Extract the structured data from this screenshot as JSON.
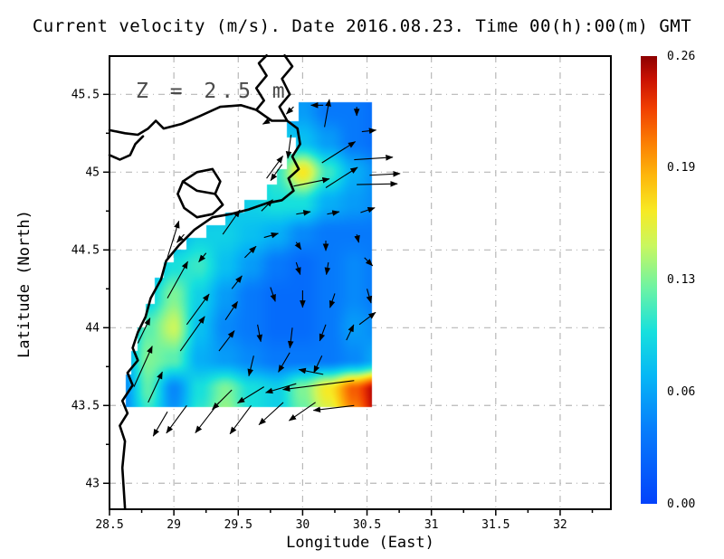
{
  "figure": {
    "title": "Current velocity (m/s). Date 2016.08.23. Time 00(h):00(m) GMT",
    "annotation": "Z = 2.5 m",
    "units": "m/s"
  },
  "axes": {
    "x": {
      "label": "Longitude (East)",
      "tick_values": [
        28.5,
        29,
        29.5,
        30,
        30.5,
        31,
        31.5,
        32
      ],
      "tick_labels": [
        "28.5",
        "29",
        "29.5",
        "30",
        "30.5",
        "31",
        "31.5",
        "32"
      ],
      "minor_tick_values": [
        28.75,
        29.25,
        29.75,
        30.25,
        30.75,
        31.25,
        31.75,
        32.25
      ],
      "range": [
        28.5,
        32.394
      ]
    },
    "y": {
      "label": "Latitude (North)",
      "tick_values": [
        45.5,
        45,
        44.5,
        44,
        43.5,
        43
      ],
      "tick_labels": [
        "45.5",
        "45",
        "44.5",
        "44",
        "43.5",
        "43"
      ],
      "minor_tick_values": [
        45.25,
        44.75,
        44.25,
        43.75,
        43.25
      ],
      "range": [
        42.833,
        45.746
      ]
    }
  },
  "colorbar": {
    "min": 0,
    "max": 0.26,
    "tick_values": [
      0.26,
      0.195,
      0.13,
      0.065,
      0
    ],
    "tick_labels": [
      "0.26",
      "0.19",
      "0.13",
      "0.06",
      "0.00"
    ]
  },
  "colors": {
    "background": "#ffffff",
    "frame": "#000000",
    "grid": "#b8b8b8",
    "coast": "#000000",
    "arrow": "#000000",
    "annotation": "#4a4a4a",
    "colormap": [
      [
        0.0,
        "#0442fb"
      ],
      [
        0.045,
        "#0680fb"
      ],
      [
        0.075,
        "#06b8f5"
      ],
      [
        0.1,
        "#17e0dd"
      ],
      [
        0.125,
        "#6cf3a4"
      ],
      [
        0.15,
        "#c9f75f"
      ],
      [
        0.17,
        "#f7ea24"
      ],
      [
        0.19,
        "#fdb80c"
      ],
      [
        0.21,
        "#fb7d03"
      ],
      [
        0.23,
        "#f03d01"
      ],
      [
        0.247,
        "#c81002"
      ],
      [
        0.26,
        "#8d0000"
      ]
    ]
  },
  "chart_data": {
    "type": "heatmap",
    "subtype": "heatmap+quiver",
    "title": "Current velocity (m/s). Date 2016.08.23. Time 00(h):00(m) GMT",
    "xlabel": "Longitude (East)",
    "ylabel": "Latitude (North)",
    "units": "m/s",
    "depth_m": 2.5,
    "value_range": [
      0,
      0.26
    ],
    "heatmap": {
      "lons": [
        28.6,
        28.8,
        29.0,
        29.2,
        29.4,
        29.6,
        29.8,
        30.0,
        30.2,
        30.4,
        30.6
      ],
      "lats": [
        45.6,
        45.4,
        45.2,
        45.0,
        44.8,
        44.6,
        44.4,
        44.2,
        44.0,
        43.8,
        43.6,
        43.4
      ],
      "values": [
        [
          0.03,
          0.03,
          0.03,
          0.04,
          0.04,
          0.05,
          0.05,
          0.05,
          0.04,
          0.03,
          0.03
        ],
        [
          0.03,
          0.03,
          0.03,
          0.04,
          0.05,
          0.06,
          0.07,
          0.06,
          0.04,
          0.04,
          0.03
        ],
        [
          0.03,
          0.03,
          0.04,
          0.04,
          0.05,
          0.07,
          0.09,
          0.08,
          0.06,
          0.04,
          0.03
        ],
        [
          0.03,
          0.04,
          0.04,
          0.05,
          0.06,
          0.08,
          0.11,
          0.17,
          0.11,
          0.07,
          0.05
        ],
        [
          0.04,
          0.04,
          0.05,
          0.06,
          0.08,
          0.09,
          0.1,
          0.1,
          0.07,
          0.06,
          0.05
        ],
        [
          0.04,
          0.05,
          0.07,
          0.09,
          0.09,
          0.08,
          0.07,
          0.05,
          0.04,
          0.04,
          0.04
        ],
        [
          0.05,
          0.07,
          0.1,
          0.11,
          0.08,
          0.06,
          0.04,
          0.03,
          0.04,
          0.05,
          0.04
        ],
        [
          0.05,
          0.09,
          0.13,
          0.09,
          0.06,
          0.04,
          0.03,
          0.03,
          0.04,
          0.05,
          0.04
        ],
        [
          0.06,
          0.12,
          0.15,
          0.08,
          0.05,
          0.04,
          0.03,
          0.03,
          0.04,
          0.06,
          0.05
        ],
        [
          0.06,
          0.13,
          0.12,
          0.07,
          0.06,
          0.05,
          0.04,
          0.04,
          0.04,
          0.05,
          0.07
        ],
        [
          0.05,
          0.12,
          0.05,
          0.1,
          0.13,
          0.1,
          0.09,
          0.13,
          0.17,
          0.22,
          0.26
        ],
        [
          0.05,
          0.1,
          0.06,
          0.11,
          0.14,
          0.1,
          0.09,
          0.12,
          0.15,
          0.2,
          0.26
        ]
      ]
    },
    "mask_polygon": [
      [
        28.63,
        43.49
      ],
      [
        28.63,
        43.7
      ],
      [
        28.67,
        43.7
      ],
      [
        28.67,
        43.85
      ],
      [
        28.72,
        43.85
      ],
      [
        28.72,
        44.0
      ],
      [
        28.78,
        44.0
      ],
      [
        28.78,
        44.15
      ],
      [
        28.85,
        44.15
      ],
      [
        28.85,
        44.32
      ],
      [
        28.92,
        44.32
      ],
      [
        28.92,
        44.42
      ],
      [
        29.0,
        44.42
      ],
      [
        29.0,
        44.5
      ],
      [
        29.1,
        44.5
      ],
      [
        29.1,
        44.58
      ],
      [
        29.25,
        44.58
      ],
      [
        29.25,
        44.66
      ],
      [
        29.4,
        44.66
      ],
      [
        29.4,
        44.74
      ],
      [
        29.55,
        44.74
      ],
      [
        29.55,
        44.82
      ],
      [
        29.72,
        44.82
      ],
      [
        29.72,
        44.92
      ],
      [
        29.8,
        44.92
      ],
      [
        29.8,
        45.02
      ],
      [
        29.88,
        45.02
      ],
      [
        29.88,
        45.12
      ],
      [
        29.95,
        45.12
      ],
      [
        29.95,
        45.22
      ],
      [
        29.88,
        45.22
      ],
      [
        29.88,
        45.33
      ],
      [
        29.97,
        45.33
      ],
      [
        29.97,
        45.45
      ],
      [
        30.54,
        45.45
      ],
      [
        30.54,
        43.49
      ]
    ],
    "quiver_lon_lat_u_v": [
      [
        29.76,
        45.34,
        -0.022,
        -0.012
      ],
      [
        29.93,
        45.42,
        -0.018,
        -0.018
      ],
      [
        30.16,
        45.43,
        -0.03,
        0.0
      ],
      [
        30.42,
        45.42,
        0.0,
        -0.022
      ],
      [
        30.17,
        45.29,
        0.012,
        0.068
      ],
      [
        30.46,
        45.26,
        0.035,
        0.004
      ],
      [
        29.91,
        45.24,
        -0.008,
        -0.058
      ],
      [
        29.84,
        45.05,
        -0.028,
        -0.04
      ],
      [
        30.15,
        45.06,
        0.082,
        0.052
      ],
      [
        30.4,
        45.08,
        0.095,
        0.006
      ],
      [
        30.52,
        44.98,
        0.075,
        0.004
      ],
      [
        29.72,
        44.96,
        0.04,
        0.055
      ],
      [
        29.93,
        44.91,
        0.088,
        0.018
      ],
      [
        30.18,
        44.9,
        0.078,
        0.05
      ],
      [
        30.42,
        44.92,
        0.1,
        0.002
      ],
      [
        29.68,
        44.75,
        0.028,
        0.028
      ],
      [
        29.95,
        44.73,
        0.035,
        0.006
      ],
      [
        30.19,
        44.73,
        0.03,
        0.006
      ],
      [
        30.45,
        44.74,
        0.035,
        0.012
      ],
      [
        29.08,
        44.6,
        -0.018,
        -0.02
      ],
      [
        29.38,
        44.6,
        0.042,
        0.06
      ],
      [
        29.7,
        44.58,
        0.035,
        0.01
      ],
      [
        29.95,
        44.55,
        0.012,
        -0.018
      ],
      [
        30.18,
        44.56,
        0.0,
        -0.025
      ],
      [
        30.42,
        44.6,
        0.005,
        -0.02
      ],
      [
        28.95,
        44.45,
        0.028,
        0.09
      ],
      [
        29.25,
        44.48,
        -0.018,
        -0.022
      ],
      [
        29.55,
        44.45,
        0.028,
        0.028
      ],
      [
        29.95,
        44.42,
        0.01,
        -0.03
      ],
      [
        30.2,
        44.42,
        -0.005,
        -0.03
      ],
      [
        30.48,
        44.45,
        0.02,
        -0.02
      ],
      [
        28.95,
        44.19,
        0.05,
        0.09
      ],
      [
        29.45,
        44.25,
        0.025,
        0.032
      ],
      [
        29.75,
        44.26,
        0.012,
        -0.035
      ],
      [
        30.0,
        44.24,
        0.0,
        -0.042
      ],
      [
        30.25,
        44.22,
        -0.012,
        -0.035
      ],
      [
        30.5,
        44.25,
        0.01,
        -0.035
      ],
      [
        29.1,
        44.02,
        0.055,
        0.075
      ],
      [
        29.4,
        44.05,
        0.03,
        0.045
      ],
      [
        29.65,
        44.02,
        0.008,
        -0.042
      ],
      [
        29.92,
        44.0,
        -0.006,
        -0.05
      ],
      [
        30.18,
        44.02,
        -0.015,
        -0.04
      ],
      [
        30.44,
        44.02,
        0.04,
        0.03
      ],
      [
        28.72,
        43.9,
        0.03,
        0.062
      ],
      [
        29.05,
        43.85,
        0.06,
        0.085
      ],
      [
        29.35,
        43.85,
        0.038,
        0.05
      ],
      [
        29.62,
        43.82,
        -0.012,
        -0.05
      ],
      [
        29.9,
        43.84,
        -0.028,
        -0.048
      ],
      [
        30.15,
        43.82,
        -0.02,
        -0.042
      ],
      [
        30.34,
        43.92,
        0.018,
        0.038
      ],
      [
        28.69,
        43.62,
        0.045,
        0.1
      ],
      [
        30.4,
        43.66,
        -0.175,
        -0.022
      ],
      [
        30.16,
        43.7,
        -0.06,
        0.012
      ],
      [
        29.95,
        43.64,
        -0.075,
        -0.022
      ],
      [
        29.7,
        43.62,
        -0.065,
        -0.04
      ],
      [
        29.45,
        43.6,
        -0.048,
        -0.048
      ],
      [
        28.8,
        43.52,
        0.035,
        0.075
      ],
      [
        30.4,
        43.5,
        -0.1,
        -0.012
      ],
      [
        30.1,
        43.52,
        -0.065,
        -0.045
      ],
      [
        29.85,
        43.52,
        -0.06,
        -0.055
      ],
      [
        29.6,
        43.5,
        -0.052,
        -0.07
      ],
      [
        29.35,
        43.52,
        -0.058,
        -0.075
      ],
      [
        29.1,
        43.5,
        -0.05,
        -0.068
      ],
      [
        28.95,
        43.46,
        -0.035,
        -0.06
      ]
    ],
    "coastlines": [
      [
        [
          28.5,
          45.27
        ],
        [
          28.62,
          45.25
        ],
        [
          28.72,
          45.24
        ],
        [
          28.8,
          45.28
        ],
        [
          28.86,
          45.33
        ],
        [
          28.92,
          45.28
        ],
        [
          29.06,
          45.31
        ],
        [
          29.2,
          45.36
        ],
        [
          29.36,
          45.42
        ],
        [
          29.52,
          45.43
        ],
        [
          29.64,
          45.4
        ],
        [
          29.76,
          45.33
        ],
        [
          29.88,
          45.33
        ],
        [
          29.96,
          45.28
        ],
        [
          29.98,
          45.18
        ],
        [
          29.92,
          45.1
        ],
        [
          29.97,
          45.02
        ],
        [
          29.89,
          44.96
        ],
        [
          29.93,
          44.88
        ],
        [
          29.84,
          44.82
        ],
        [
          29.72,
          44.8
        ],
        [
          29.58,
          44.76
        ],
        [
          29.44,
          44.73
        ],
        [
          29.3,
          44.71
        ],
        [
          29.16,
          44.63
        ],
        [
          29.04,
          44.53
        ],
        [
          28.94,
          44.43
        ],
        [
          28.9,
          44.31
        ],
        [
          28.82,
          44.19
        ],
        [
          28.78,
          44.07
        ],
        [
          28.72,
          43.97
        ],
        [
          28.68,
          43.87
        ],
        [
          28.72,
          43.79
        ],
        [
          28.64,
          43.71
        ],
        [
          28.68,
          43.63
        ],
        [
          28.6,
          43.53
        ],
        [
          28.64,
          43.45
        ],
        [
          28.58,
          43.37
        ],
        [
          28.62,
          43.27
        ],
        [
          28.6,
          43.1
        ],
        [
          28.62,
          42.84
        ]
      ],
      [
        [
          29.64,
          45.4
        ],
        [
          29.7,
          45.46
        ],
        [
          29.64,
          45.54
        ],
        [
          29.72,
          45.62
        ],
        [
          29.66,
          45.7
        ],
        [
          29.72,
          45.75
        ]
      ],
      [
        [
          29.88,
          45.33
        ],
        [
          29.82,
          45.42
        ],
        [
          29.9,
          45.5
        ],
        [
          29.84,
          45.6
        ],
        [
          29.92,
          45.68
        ],
        [
          29.86,
          45.75
        ]
      ],
      [
        [
          28.5,
          45.11
        ],
        [
          28.58,
          45.08
        ],
        [
          28.66,
          45.11
        ],
        [
          28.7,
          45.18
        ],
        [
          28.76,
          45.23
        ]
      ],
      [
        [
          29.3,
          45.02
        ],
        [
          29.36,
          44.94
        ],
        [
          29.32,
          44.86
        ],
        [
          29.38,
          44.79
        ],
        [
          29.3,
          44.73
        ],
        [
          29.18,
          44.71
        ],
        [
          29.08,
          44.77
        ],
        [
          29.03,
          44.86
        ],
        [
          29.07,
          44.94
        ],
        [
          29.18,
          45.0
        ],
        [
          29.3,
          45.02
        ]
      ],
      [
        [
          29.07,
          44.94
        ],
        [
          29.18,
          44.88
        ],
        [
          29.32,
          44.86
        ]
      ]
    ]
  }
}
